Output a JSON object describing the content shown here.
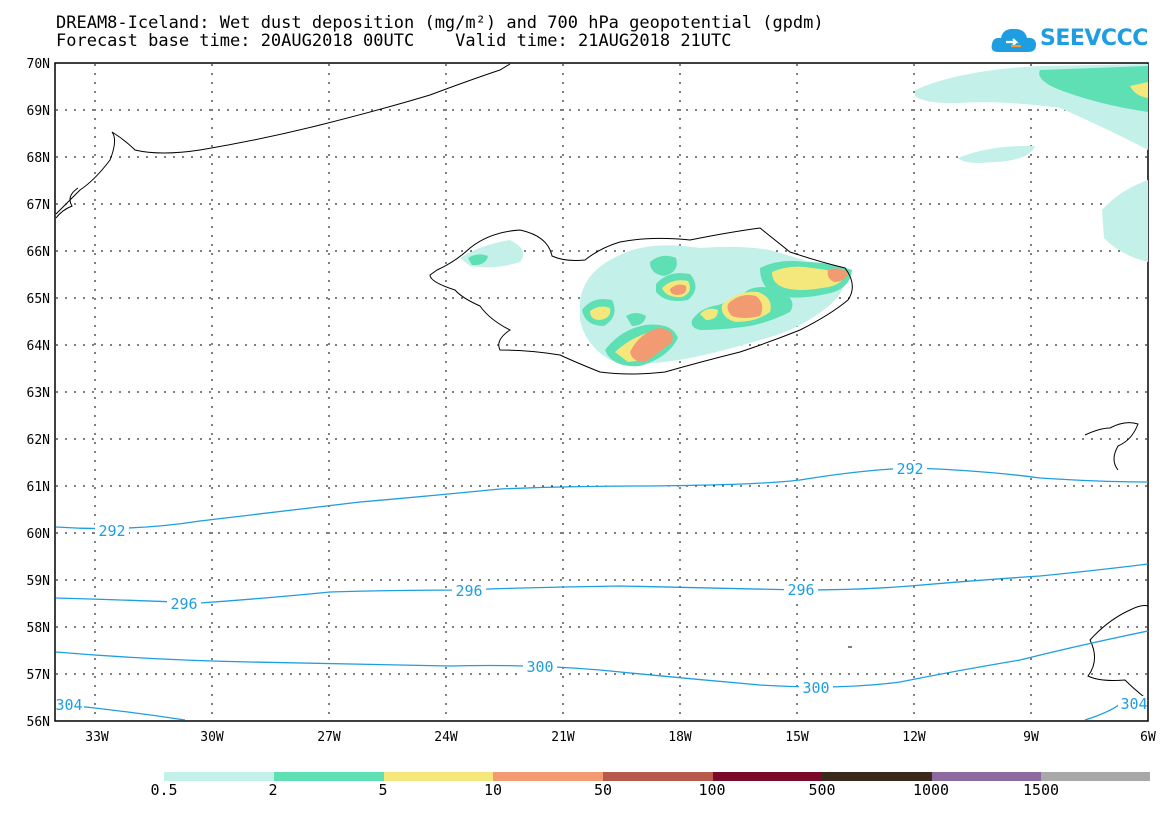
{
  "header": {
    "title_line1": "DREAM8-Iceland: Wet dust deposition (mg/m²) and 700 hPa geopotential (gpdm)",
    "title_line2": "Forecast base time: 20AUG2018 00UTC    Valid time: 21AUG2018 21UTC",
    "logo_text": "SEEVCCC"
  },
  "map": {
    "lat_labels": [
      "70N",
      "69N",
      "68N",
      "67N",
      "66N",
      "65N",
      "64N",
      "63N",
      "62N",
      "61N",
      "60N",
      "59N",
      "58N",
      "57N",
      "56N"
    ],
    "lon_labels": [
      "33W",
      "30W",
      "27W",
      "24W",
      "21W",
      "18W",
      "15W",
      "12W",
      "9W",
      "6W"
    ],
    "contour_labels": [
      "292",
      "292",
      "296",
      "296",
      "296",
      "300",
      "300",
      "304",
      "304"
    ],
    "colors": {
      "contour": "#1e9ee0",
      "grid": "#000000"
    }
  },
  "legend": {
    "labels": [
      "0.5",
      "2",
      "5",
      "10",
      "50",
      "100",
      "500",
      "1000",
      "1500"
    ],
    "colors": [
      "#c4f0ea",
      "#5fe0b4",
      "#f4e87c",
      "#f29a72",
      "#b75a4e",
      "#7a0a2a",
      "#3b2a1c",
      "#8c6aa0",
      "#a8a8a8"
    ]
  }
}
